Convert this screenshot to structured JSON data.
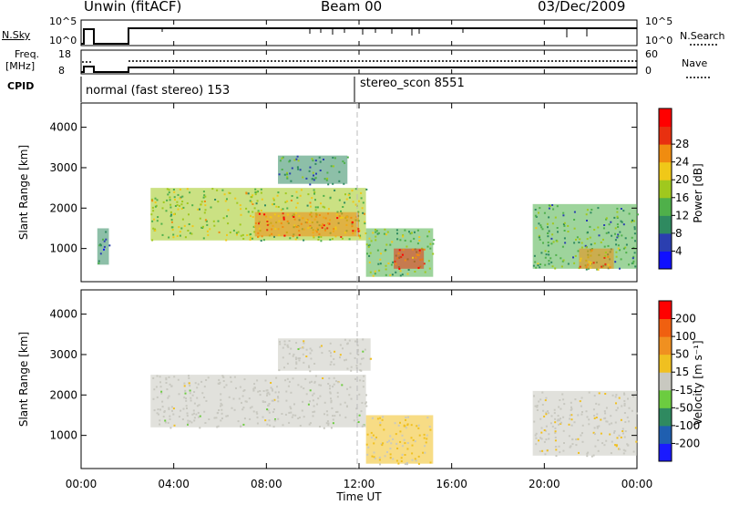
{
  "header": {
    "station": "Unwin (fitACF)",
    "beam": "Beam 00",
    "date": "03/Dec/2009"
  },
  "strips": {
    "nsky_label": "N.Sky",
    "nsearch_label": "N.Search",
    "noise_ticks_left": [
      "10^5",
      "10^0"
    ],
    "noise_ticks_right": [
      "10^5",
      "10^0"
    ],
    "freq_label": "Freq.",
    "freq_unit": "[MHz]",
    "freq_ticks": [
      "18",
      "8"
    ],
    "nave_ticks": [
      "60",
      "0"
    ],
    "nave_label": "Nave",
    "cpid_label": "CPID",
    "cpid_segments": [
      "normal (fast stereo) 153",
      "stereo_scon 8551"
    ]
  },
  "axes": {
    "x_ticks": [
      "00:00",
      "04:00",
      "08:00",
      "12:00",
      "16:00",
      "20:00",
      "00:00"
    ],
    "x_label": "Time UT",
    "y_label": "Slant Range [km]",
    "y_ticks": [
      "1000",
      "2000",
      "3000",
      "4000"
    ]
  },
  "colorbars": {
    "power_label": "Power [dB]",
    "power_ticks": [
      "4",
      "8",
      "12",
      "16",
      "20",
      "24",
      "28"
    ],
    "power_colors": [
      "#1010ff",
      "#2b3fb0",
      "#2f8a60",
      "#4fb04a",
      "#a0c81e",
      "#f0c818",
      "#f08c10",
      "#e83010",
      "#ff0000"
    ],
    "velocity_label": "Velocity [m s⁻¹]",
    "velocity_ticks": [
      "200",
      "100",
      "50",
      "15",
      "-15",
      "-50",
      "-100",
      "-200"
    ],
    "velocity_colors": [
      "#1a1aff",
      "#1f5fb0",
      "#2f8a60",
      "#6ccc40",
      "#c8c8c0",
      "#f0c020",
      "#f09020",
      "#f06010",
      "#ff0000"
    ]
  },
  "chart_data": [
    {
      "type": "heatmap",
      "title": "Power",
      "xlabel": "Time UT",
      "ylabel": "Slant Range [km]",
      "xlim_hours": [
        0,
        24
      ],
      "ylim_km": [
        180,
        4600
      ],
      "colorbar_label": "Power [dB]",
      "colorbar_range": [
        0,
        32
      ],
      "regions": [
        {
          "t_start": 0.7,
          "t_end": 1.2,
          "r_start": 600,
          "r_end": 1500,
          "value": 8
        },
        {
          "t_start": 3.0,
          "t_end": 12.3,
          "r_start": 1200,
          "r_end": 2500,
          "value": 16
        },
        {
          "t_start": 7.5,
          "t_end": 12.0,
          "r_start": 1300,
          "r_end": 1900,
          "value": 24
        },
        {
          "t_start": 8.5,
          "t_end": 11.5,
          "r_start": 2600,
          "r_end": 3300,
          "value": 10
        },
        {
          "t_start": 12.3,
          "t_end": 15.2,
          "r_start": 300,
          "r_end": 1500,
          "value": 14
        },
        {
          "t_start": 13.5,
          "t_end": 14.8,
          "r_start": 500,
          "r_end": 1000,
          "value": 26
        },
        {
          "t_start": 19.5,
          "t_end": 24.0,
          "r_start": 500,
          "r_end": 2100,
          "value": 12
        },
        {
          "t_start": 21.5,
          "t_end": 23.0,
          "r_start": 500,
          "r_end": 1000,
          "value": 22
        }
      ]
    },
    {
      "type": "heatmap",
      "title": "Velocity",
      "xlabel": "Time UT",
      "ylabel": "Slant Range [km]",
      "xlim_hours": [
        0,
        24
      ],
      "ylim_km": [
        180,
        4600
      ],
      "colorbar_label": "Velocity [m s⁻¹]",
      "colorbar_range": [
        -250,
        250
      ],
      "regions": [
        {
          "t_start": 3.0,
          "t_end": 12.3,
          "r_start": 1200,
          "r_end": 2500,
          "value": 0
        },
        {
          "t_start": 8.5,
          "t_end": 12.5,
          "r_start": 2600,
          "r_end": 3400,
          "value": 0
        },
        {
          "t_start": 12.3,
          "t_end": 15.2,
          "r_start": 300,
          "r_end": 1500,
          "value": -30
        },
        {
          "t_start": 19.5,
          "t_end": 24.0,
          "r_start": 500,
          "r_end": 2100,
          "value": -10
        }
      ]
    }
  ]
}
